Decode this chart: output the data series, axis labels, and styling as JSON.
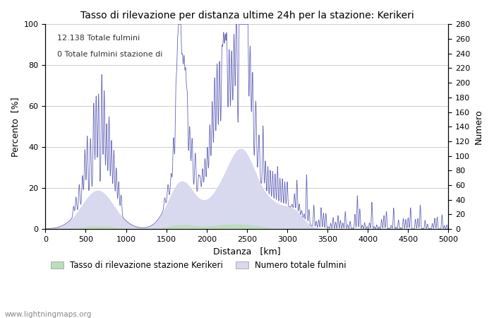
{
  "title": "Tasso di rilevazione per distanza ultime 24h per la stazione: Kerikeri",
  "xlabel": "Distanza   [km]",
  "ylabel_left": "Percento  [%]",
  "ylabel_right": "Numero",
  "annotation_line1": "12.138 Totale fulmini",
  "annotation_line2": "0 Totale fulmini stazione di",
  "legend_green": "Tasso di rilevazione stazione Kerikeri",
  "legend_blue": "Numero totale fulmini",
  "watermark": "www.lightningmaps.org",
  "xlim": [
    0,
    5000
  ],
  "ylim_left": [
    0,
    100
  ],
  "ylim_right": [
    0,
    280
  ],
  "xticks": [
    0,
    500,
    1000,
    1500,
    2000,
    2500,
    3000,
    3500,
    4000,
    4500,
    5000
  ],
  "yticks_left": [
    0,
    20,
    40,
    60,
    80,
    100
  ],
  "yticks_right": [
    0,
    20,
    40,
    60,
    80,
    100,
    120,
    140,
    160,
    180,
    200,
    220,
    240,
    260,
    280
  ],
  "color_blue_line": "#6666bb",
  "color_blue_fill": "#d8d8ee",
  "color_green_fill": "#bbddbb",
  "color_green_line": "#77bb77",
  "background_color": "#ffffff",
  "grid_color": "#bbbbbb"
}
